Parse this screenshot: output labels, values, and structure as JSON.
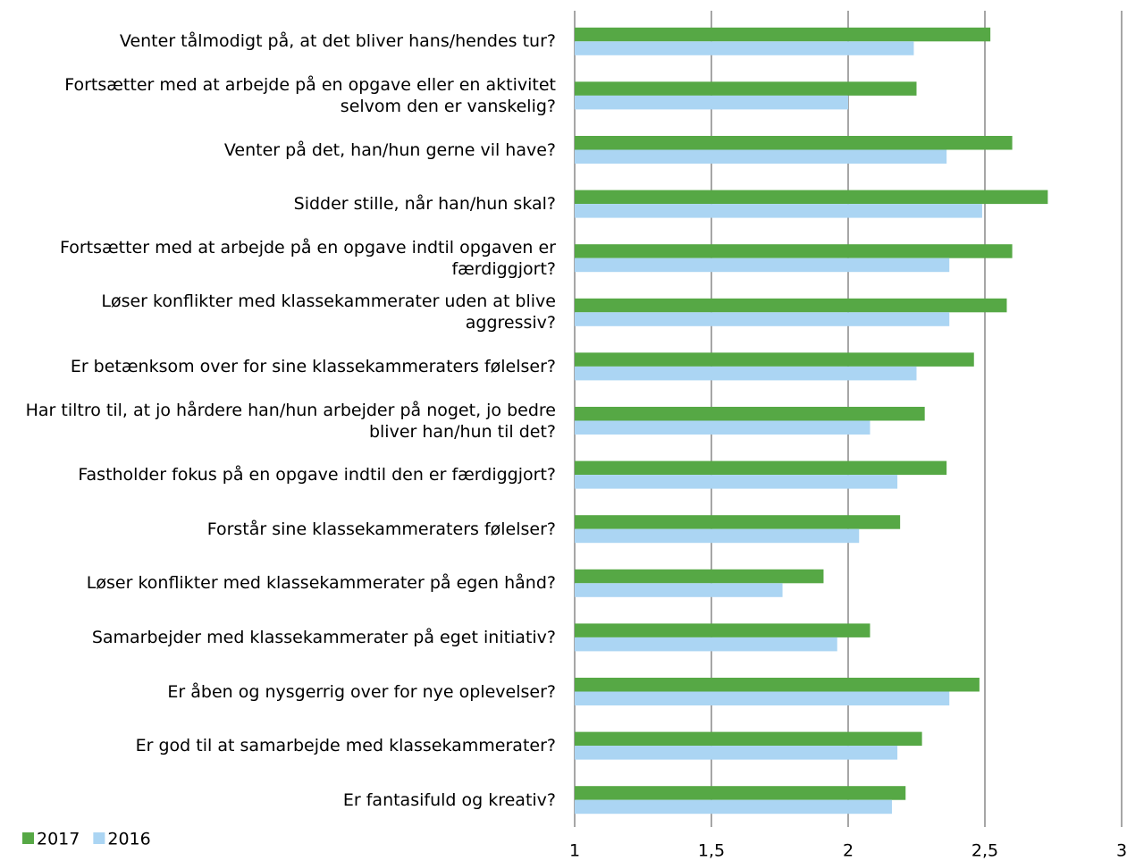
{
  "chart_data": {
    "type": "bar",
    "orientation": "horizontal",
    "categories": [
      "Venter tålmodigt på, at det bliver hans/hendes tur?",
      "Fortsætter med at arbejde på en opgave eller en aktivitet selvom den er vanskelig?",
      "Venter på det, han/hun gerne vil have?",
      "Sidder stille, når han/hun skal?",
      "Fortsætter med at arbejde på en opgave indtil opgaven er færdiggjort?",
      "Løser konflikter med klassekammerater uden at blive aggressiv?",
      "Er betænksom over for sine klassekammeraters følelser?",
      "Har tiltro til, at jo hårdere han/hun arbejder på noget, jo bedre bliver han/hun til det?",
      "Fastholder fokus på en opgave indtil den er færdiggjort?",
      "Forstår sine klassekammeraters følelser?",
      "Løser konflikter med klassekammerater på egen hånd?",
      "Samarbejder med klassekammerater på eget initiativ?",
      "Er åben og nysgerrig over for nye oplevelser?",
      "Er god til at samarbejde med klassekammerater?",
      "Er fantasifuld og kreativ?"
    ],
    "series": [
      {
        "name": "2017",
        "color": "#56a845",
        "values": [
          2.52,
          2.25,
          2.6,
          2.73,
          2.6,
          2.58,
          2.46,
          2.28,
          2.36,
          2.19,
          1.91,
          2.08,
          2.48,
          2.27,
          2.21
        ]
      },
      {
        "name": "2016",
        "color": "#abd5f3",
        "values": [
          2.24,
          2.0,
          2.36,
          2.49,
          2.37,
          2.37,
          2.25,
          2.08,
          2.18,
          2.04,
          1.76,
          1.96,
          2.37,
          2.18,
          2.16
        ]
      }
    ],
    "xlim": [
      1,
      3
    ],
    "xticks": [
      1,
      {
        "value": 1.5,
        "label": "1,5"
      },
      2,
      {
        "value": 2.5,
        "label": "2,5"
      },
      3
    ],
    "grid": true,
    "legend": "bottom-left"
  }
}
